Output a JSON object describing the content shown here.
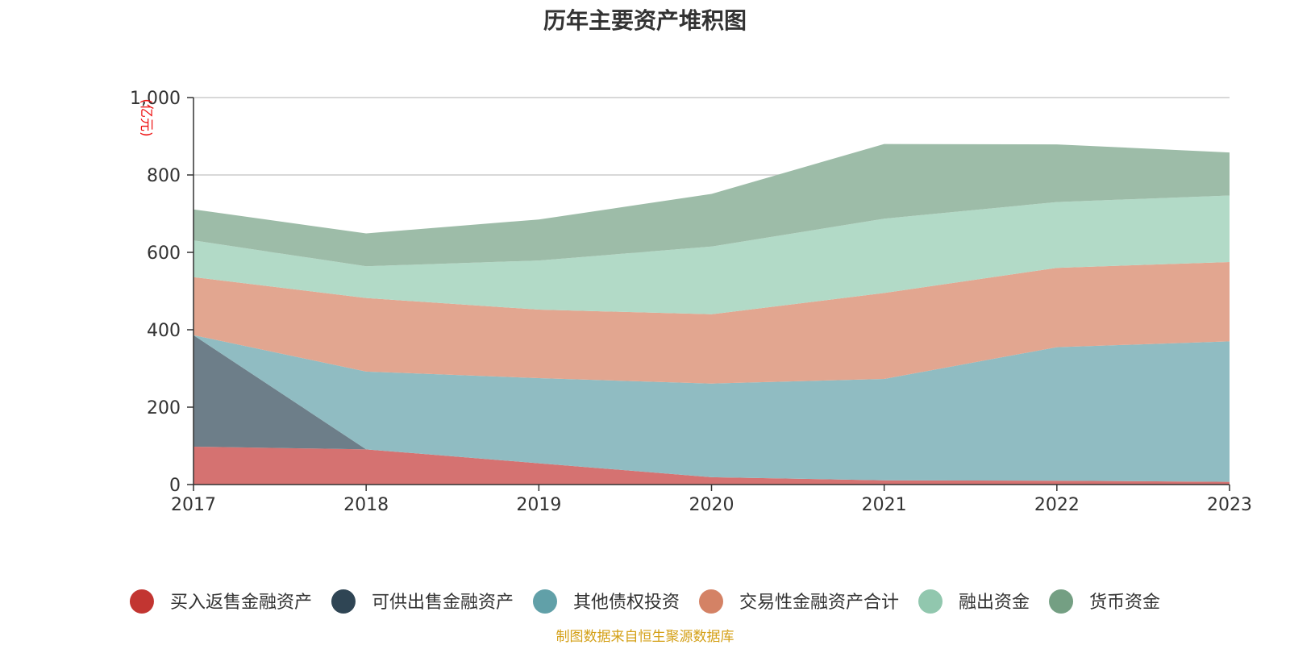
{
  "source_note": "制图数据来自恒生聚源数据库",
  "chart_data": {
    "type": "area",
    "stacked": true,
    "title": "历年主要资产堆积图",
    "ylabel": "(亿元)",
    "xlabel": "",
    "categories": [
      "2017",
      "2018",
      "2019",
      "2020",
      "2021",
      "2022",
      "2023"
    ],
    "ylim": [
      0,
      1000
    ],
    "yticks": [
      0,
      200,
      400,
      600,
      800,
      1000
    ],
    "ytick_labels": [
      "0",
      "200",
      "400",
      "600",
      "800",
      "1,000"
    ],
    "grid": true,
    "legend_position": "bottom",
    "series": [
      {
        "name": "买入返售金融资产",
        "color": "#c23531",
        "fill": "#d57271",
        "values": [
          98,
          91,
          55,
          19,
          11,
          10,
          7
        ]
      },
      {
        "name": "可供出售金融资产",
        "color": "#2f4554",
        "fill": "#6d7e89",
        "values": [
          288,
          0,
          0,
          0,
          0,
          0,
          0
        ]
      },
      {
        "name": "其他债权投资",
        "color": "#61a0a8",
        "fill": "#90bcc2",
        "values": [
          0,
          201,
          220,
          242,
          262,
          345,
          363
        ]
      },
      {
        "name": "交易性金融资产合计",
        "color": "#d48265",
        "fill": "#e2a690",
        "values": [
          150,
          190,
          177,
          179,
          222,
          205,
          205
        ]
      },
      {
        "name": "融出资金",
        "color": "#91c7ae",
        "fill": "#b2dac7",
        "values": [
          95,
          82,
          127,
          175,
          192,
          170,
          172
        ]
      },
      {
        "name": "货币资金",
        "color": "#749f83",
        "fill": "#9dbca8",
        "values": [
          80,
          85,
          106,
          136,
          193,
          149,
          111
        ]
      }
    ]
  }
}
